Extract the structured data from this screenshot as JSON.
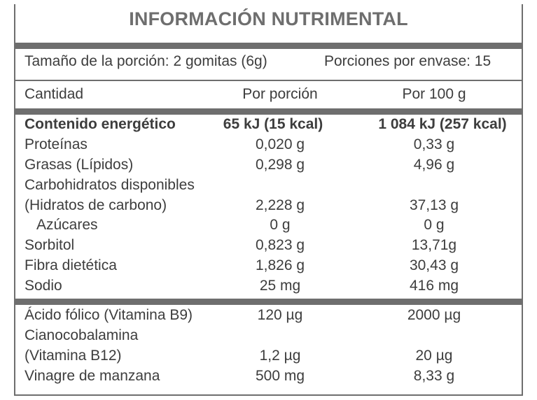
{
  "title": "INFORMACIÓN NUTRIMENTAL",
  "serving": {
    "size": "Tamaño de la porción: 2 gomitas (6g)",
    "per_container": "Porciones por envase: 15"
  },
  "headers": {
    "amount": "Cantidad",
    "per_serving": "Por porción",
    "per_100g": "Por 100 g"
  },
  "nutrients": [
    {
      "name": "Contenido energético",
      "per_serving": "65 kJ (15 kcal)",
      "per_100g": "1 084 kJ (257 kcal)"
    },
    {
      "name": "Proteínas",
      "per_serving": "0,020 g",
      "per_100g": "0,33 g"
    },
    {
      "name": "Grasas (Lípidos)",
      "per_serving": "0,298 g",
      "per_100g": "4,96 g"
    },
    {
      "name": "Carbohidratos  disponibles",
      "name_line2": "(Hidratos de carbono)",
      "per_serving": "2,228 g",
      "per_100g": "37,13 g"
    },
    {
      "name": "Azúcares",
      "per_serving": "0 g",
      "per_100g": "0 g"
    },
    {
      "name": "Sorbitol",
      "per_serving": "0,823 g",
      "per_100g": "13,71g"
    },
    {
      "name": "Fibra dietética",
      "per_serving": "1,826 g",
      "per_100g": "30,43 g"
    },
    {
      "name": "Sodio",
      "per_serving": "25 mg",
      "per_100g": "416 mg"
    }
  ],
  "extras": [
    {
      "name": "Ácido fólico (Vitamina B9)",
      "per_serving": "120  µg",
      "per_100g": "2000 µg"
    },
    {
      "name": "Cianocobalamina",
      "name_line2": "(Vitamina B12)",
      "per_serving": "1,2 µg",
      "per_100g": "20 µg"
    },
    {
      "name": "Vinagre de manzana",
      "per_serving": "500 mg",
      "per_100g": "8,33 g"
    }
  ]
}
